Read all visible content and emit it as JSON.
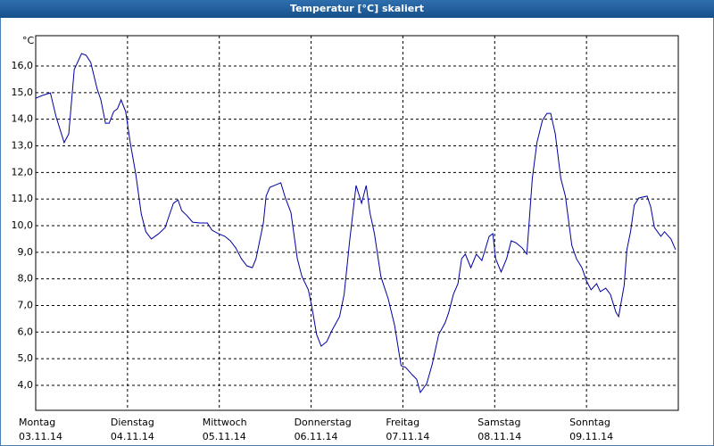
{
  "chart_data": {
    "type": "line",
    "title": "Temperatur [°C] skaliert",
    "ylabel": "°C",
    "color": "#0000a0",
    "grid": true,
    "xlim": [
      0,
      7
    ],
    "ylim": [
      3.06,
      17.14
    ],
    "xticks": [
      {
        "value": 0,
        "label": "Montag",
        "date": "03.11.14"
      },
      {
        "value": 1,
        "label": "Dienstag",
        "date": "04.11.14"
      },
      {
        "value": 2,
        "label": "Mittwoch",
        "date": "05.11.14"
      },
      {
        "value": 3,
        "label": "Donnerstag",
        "date": "06.11.14"
      },
      {
        "value": 4,
        "label": "Freitag",
        "date": "07.11.14"
      },
      {
        "value": 5,
        "label": "Samstag",
        "date": "08.11.14"
      },
      {
        "value": 6,
        "label": "Sonntag",
        "date": "09.11.14"
      }
    ],
    "yticks": [
      {
        "value": 4,
        "label": "4,0"
      },
      {
        "value": 5,
        "label": "5,0"
      },
      {
        "value": 6,
        "label": "6,0"
      },
      {
        "value": 7,
        "label": "7,0"
      },
      {
        "value": 8,
        "label": "8,0"
      },
      {
        "value": 9,
        "label": "9,0"
      },
      {
        "value": 10,
        "label": "10,0"
      },
      {
        "value": 11,
        "label": "11,0"
      },
      {
        "value": 12,
        "label": "12,0"
      },
      {
        "value": 13,
        "label": "13,0"
      },
      {
        "value": 14,
        "label": "14,0"
      },
      {
        "value": 15,
        "label": "15,0"
      },
      {
        "value": 16,
        "label": "16,0"
      }
    ],
    "x": [
      0.0,
      0.07,
      0.16,
      0.22,
      0.31,
      0.36,
      0.42,
      0.5,
      0.55,
      0.6,
      0.67,
      0.71,
      0.76,
      0.8,
      0.85,
      0.89,
      0.93,
      0.98,
      1.03,
      1.09,
      1.15,
      1.2,
      1.26,
      1.34,
      1.41,
      1.46,
      1.5,
      1.55,
      1.59,
      1.65,
      1.71,
      1.79,
      1.87,
      1.92,
      1.99,
      2.06,
      2.12,
      2.18,
      2.24,
      2.3,
      2.36,
      2.4,
      2.44,
      2.48,
      2.51,
      2.55,
      2.62,
      2.67,
      2.72,
      2.78,
      2.85,
      2.9,
      2.97,
      3.01,
      3.06,
      3.11,
      3.17,
      3.23,
      3.31,
      3.36,
      3.42,
      3.49,
      3.55,
      3.6,
      3.64,
      3.69,
      3.76,
      3.84,
      3.91,
      3.98,
      4.03,
      4.1,
      4.15,
      4.19,
      4.26,
      4.32,
      4.39,
      4.46,
      4.5,
      4.55,
      4.6,
      4.64,
      4.68,
      4.74,
      4.8,
      4.86,
      4.94,
      4.98,
      5.01,
      5.07,
      5.13,
      5.18,
      5.23,
      5.3,
      5.35,
      5.41,
      5.46,
      5.52,
      5.57,
      5.61,
      5.66,
      5.72,
      5.77,
      5.84,
      5.89,
      5.95,
      6.0,
      6.05,
      6.11,
      6.15,
      6.21,
      6.26,
      6.32,
      6.35,
      6.41,
      6.44,
      6.48,
      6.52,
      6.57,
      6.66,
      6.7,
      6.74,
      6.81,
      6.85,
      6.92,
      6.97
    ],
    "values": [
      14.79,
      14.89,
      14.99,
      14.12,
      13.12,
      13.45,
      15.87,
      16.47,
      16.4,
      16.13,
      15.13,
      14.73,
      13.85,
      13.85,
      14.29,
      14.39,
      14.73,
      14.29,
      13.12,
      11.94,
      10.44,
      9.77,
      9.5,
      9.7,
      9.93,
      10.44,
      10.84,
      10.97,
      10.57,
      10.37,
      10.13,
      10.1,
      10.1,
      9.83,
      9.7,
      9.6,
      9.43,
      9.16,
      8.76,
      8.49,
      8.42,
      8.76,
      9.43,
      10.1,
      11.11,
      11.44,
      11.54,
      11.61,
      11.04,
      10.5,
      8.76,
      8.09,
      7.59,
      6.92,
      5.91,
      5.47,
      5.64,
      6.08,
      6.58,
      7.42,
      9.43,
      11.51,
      10.84,
      11.51,
      10.5,
      9.7,
      8.09,
      7.25,
      6.25,
      4.74,
      4.67,
      4.4,
      4.23,
      3.73,
      4.07,
      4.8,
      5.91,
      6.35,
      6.75,
      7.42,
      7.82,
      8.76,
      8.93,
      8.42,
      8.93,
      8.69,
      9.6,
      9.7,
      8.76,
      8.26,
      8.76,
      9.43,
      9.36,
      9.16,
      8.93,
      11.78,
      13.12,
      13.96,
      14.22,
      14.22,
      13.45,
      11.78,
      11.11,
      9.26,
      8.76,
      8.42,
      7.92,
      7.59,
      7.82,
      7.52,
      7.65,
      7.42,
      6.75,
      6.58,
      7.75,
      9.1,
      9.77,
      10.77,
      11.04,
      11.11,
      10.7,
      9.93,
      9.6,
      9.77,
      9.5,
      9.1
    ]
  }
}
